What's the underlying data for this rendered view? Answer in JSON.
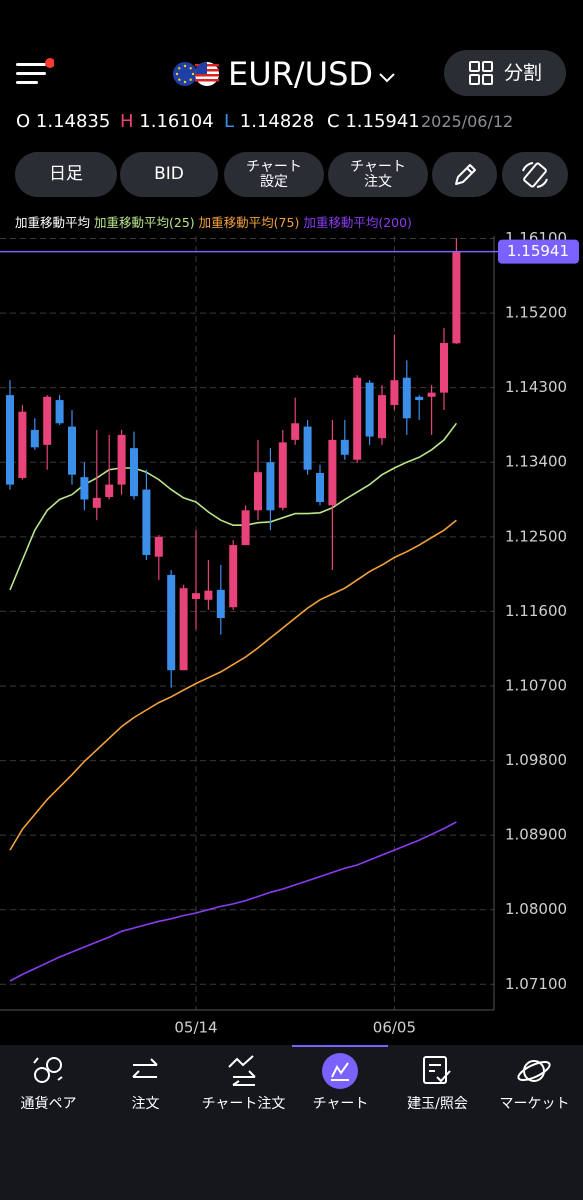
{
  "header": {
    "pair": "EUR/USD",
    "split_button": "分割",
    "ohlc_labels": [
      "O",
      "H",
      "L",
      "C"
    ],
    "date": "2025/06/12"
  },
  "toolbar": [
    [
      "日足"
    ],
    [
      "BID"
    ],
    [
      "チャート",
      "設定"
    ],
    [
      "チャート",
      "注文"
    ]
  ],
  "nav": {
    "items": [
      "通貨ペア",
      "注文",
      "チャート注文",
      "チャート",
      "建玉/照会",
      "マーケット"
    ],
    "active": 3
  },
  "chart_data": {
    "type": "candlestick",
    "indicator_label": "加重移動平均",
    "categories": [
      null,
      null,
      null,
      null,
      null,
      null,
      null,
      null,
      null,
      null,
      null,
      null,
      null,
      null,
      null,
      "05/14",
      null,
      null,
      null,
      null,
      null,
      null,
      null,
      null,
      null,
      null,
      null,
      null,
      null,
      null,
      null,
      "06/05",
      null,
      null,
      null,
      null,
      null
    ],
    "open": [
      1.1421,
      1.1321,
      1.1379,
      1.1361,
      1.1415,
      1.1383,
      1.1322,
      1.1285,
      1.1298,
      1.1313,
      1.1357,
      1.1307,
      1.1226,
      1.1204,
      1.1089,
      1.1175,
      1.1174,
      1.1186,
      1.1165,
      1.124,
      1.1282,
      1.134,
      1.1285,
      1.1367,
      1.1383,
      1.1327,
      1.1288,
      1.1367,
      1.1343,
      1.1436,
      1.1369,
      1.1409,
      1.1442,
      1.1419,
      1.1419,
      1.1424,
      1.14835
    ],
    "high": [
      1.1439,
      1.1409,
      1.1393,
      1.1421,
      1.1421,
      1.1403,
      1.134,
      1.1379,
      1.1373,
      1.1379,
      1.1377,
      1.1331,
      1.1252,
      1.121,
      1.1192,
      1.1258,
      1.1222,
      1.1216,
      1.1246,
      1.1288,
      1.1367,
      1.1357,
      1.1379,
      1.1418,
      1.1391,
      1.1337,
      1.1391,
      1.1391,
      1.1445,
      1.1439,
      1.1433,
      1.1494,
      1.1463,
      1.1421,
      1.1433,
      1.1502,
      1.16104
    ],
    "low": [
      1.1307,
      1.1319,
      1.1355,
      1.1331,
      1.1385,
      1.1313,
      1.1282,
      1.127,
      1.1295,
      1.1301,
      1.1295,
      1.1222,
      1.1198,
      1.1068,
      1.1089,
      1.1138,
      1.1162,
      1.1132,
      1.1162,
      1.124,
      1.127,
      1.1258,
      1.1282,
      1.1361,
      1.1325,
      1.1288,
      1.121,
      1.1343,
      1.1339,
      1.1361,
      1.1361,
      1.1403,
      1.1373,
      1.1391,
      1.1373,
      1.1403,
      1.14828
    ],
    "close": [
      1.1313,
      1.1401,
      1.1358,
      1.1419,
      1.1387,
      1.1325,
      1.1295,
      1.1297,
      1.1313,
      1.1373,
      1.1299,
      1.1228,
      1.125,
      1.1089,
      1.1188,
      1.1182,
      1.1185,
      1.1152,
      1.124,
      1.1282,
      1.1328,
      1.1282,
      1.1364,
      1.1387,
      1.1331,
      1.1292,
      1.1367,
      1.1349,
      1.1442,
      1.1371,
      1.1421,
      1.1439,
      1.1393,
      1.1415,
      1.1424,
      1.1484,
      1.15941
    ],
    "up_color": "#e8437a",
    "down_color": "#3b8fe8",
    "lines": [
      {
        "name": "加重移動平均(25)",
        "color": "#b9e58c",
        "values": [
          1.1186,
          1.1222,
          1.1258,
          1.1282,
          1.1295,
          1.1301,
          1.1313,
          1.1321,
          1.1331,
          1.1333,
          1.1333,
          1.1328,
          1.1319,
          1.1307,
          1.1297,
          1.1292,
          1.128,
          1.127,
          1.1264,
          1.1264,
          1.1267,
          1.1268,
          1.1273,
          1.1278,
          1.1278,
          1.1279,
          1.1285,
          1.1295,
          1.1304,
          1.1313,
          1.1325,
          1.1333,
          1.134,
          1.1346,
          1.1355,
          1.1367,
          1.1387
        ]
      },
      {
        "name": "加重移動平均(75)",
        "color": "#f3a23c",
        "values": [
          1.0872,
          1.0897,
          1.0915,
          1.0933,
          1.0948,
          1.0963,
          1.0979,
          1.0993,
          1.1007,
          1.1021,
          1.1032,
          1.1041,
          1.105,
          1.1057,
          1.1065,
          1.1073,
          1.108,
          1.1087,
          1.1096,
          1.1105,
          1.1116,
          1.1128,
          1.114,
          1.1152,
          1.1164,
          1.1174,
          1.1181,
          1.1188,
          1.1198,
          1.1208,
          1.1216,
          1.1225,
          1.1232,
          1.124,
          1.1249,
          1.1258,
          1.127
        ]
      },
      {
        "name": "加重移動平均(200)",
        "color": "#8a3cf0",
        "values": [
          1.0714,
          1.0722,
          1.0729,
          1.0736,
          1.0743,
          1.0749,
          1.0755,
          1.0761,
          1.0767,
          1.0774,
          1.0778,
          1.0782,
          1.0786,
          1.0789,
          1.0793,
          1.0796,
          1.08,
          1.0804,
          1.0807,
          1.0811,
          1.0816,
          1.0821,
          1.0825,
          1.083,
          1.0835,
          1.084,
          1.0845,
          1.085,
          1.0854,
          1.086,
          1.0866,
          1.0872,
          1.0878,
          1.0884,
          1.0891,
          1.0898,
          1.0906
        ]
      }
    ],
    "ylim": [
      1.0679,
      1.1613
    ],
    "yticks": [
      {
        "value": 1.161,
        "label": "1.16100"
      },
      {
        "value": 1.152,
        "label": "1.15200"
      },
      {
        "value": 1.143,
        "label": "1.14300"
      },
      {
        "value": 1.134,
        "label": "1.13400"
      },
      {
        "value": 1.125,
        "label": "1.12500"
      },
      {
        "value": 1.116,
        "label": "1.11600"
      },
      {
        "value": 1.107,
        "label": "1.10700"
      },
      {
        "value": 1.098,
        "label": "1.09800"
      },
      {
        "value": 1.089,
        "label": "1.08900"
      },
      {
        "value": 1.08,
        "label": "1.08000"
      },
      {
        "value": 1.071,
        "label": "1.07100"
      }
    ],
    "grid": true,
    "price_line_color": "#7b61ff"
  }
}
